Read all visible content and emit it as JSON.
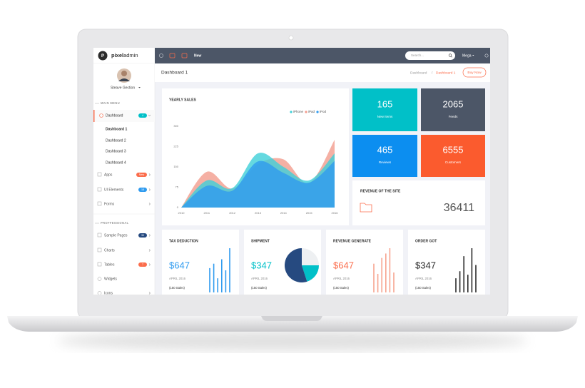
{
  "logo": {
    "mark": "P",
    "bold": "pixel",
    "rest": "admin"
  },
  "user": {
    "name": "Steave Gection"
  },
  "sidebar": {
    "main_heading": "MAIN MENU",
    "dashboard": {
      "label": "Dashboard",
      "badge": "4"
    },
    "sub_items": [
      "Dashboard 1",
      "Dashboard 2",
      "Dashboard 3",
      "Dashboard 4"
    ],
    "apps": {
      "label": "Apps",
      "badge": "New"
    },
    "ui_elements": {
      "label": "UI Elements",
      "badge": "18"
    },
    "forms": {
      "label": "Forms"
    },
    "pro_heading": "PROFFESSIONAL",
    "sample_pages": {
      "label": "Sample Pages",
      "badge": "30"
    },
    "charts": {
      "label": "Charts"
    },
    "tables": {
      "label": "Tables",
      "badge": "7"
    },
    "widgets": {
      "label": "Widgets"
    },
    "icons": {
      "label": "Icons"
    }
  },
  "topbar": {
    "new": "New",
    "search_placeholder": "Search...",
    "mega": "Mega"
  },
  "breadcrumb": {
    "page_title": "Dashboard 1",
    "trail": [
      "Dashboard",
      "Dashboard 1"
    ],
    "separator": "/",
    "button": "Buy Now"
  },
  "tiles": [
    {
      "value": 165,
      "label": "New Items"
    },
    {
      "value": 2065,
      "label": "Feeds"
    },
    {
      "value": 465,
      "label": "Reviews"
    },
    {
      "value": 6555,
      "label": "Customers"
    }
  ],
  "revenue_site": {
    "title": "REVENUE OF THE SITE",
    "value": 36411
  },
  "cards": [
    {
      "value": "$647",
      "period": "APRIL 2016",
      "note": "(150 Sales)",
      "color": "#2f9bef"
    },
    {
      "value": "$347",
      "period": "APRIL 2016",
      "note": "(150 Sales)",
      "color": "#01c0c8"
    },
    {
      "value": "$647",
      "period": "APRIL 2016",
      "note": "(150 Sales)",
      "color": "#fb6d4c"
    },
    {
      "value": "$347",
      "period": "APRIL 2016",
      "note": "(150 Sales)",
      "color": "#2b2b2b"
    }
  ],
  "chart_data": [
    {
      "type": "area",
      "title": "YEARLY SALES",
      "categories": [
        "2010",
        "2011",
        "2012",
        "2013",
        "2014",
        "2015",
        "2016"
      ],
      "series": [
        {
          "name": "iPad",
          "color": "#f39c8d",
          "values": [
            0,
            132,
            70,
            160,
            178,
            90,
            250
          ]
        },
        {
          "name": "iPhone",
          "color": "#3fd0d8",
          "values": [
            0,
            100,
            72,
            200,
            150,
            100,
            200
          ]
        },
        {
          "name": "iPod",
          "color": "#2f9bef",
          "values": [
            0,
            80,
            62,
            170,
            128,
            92,
            172
          ]
        }
      ],
      "legend_order": [
        1,
        0,
        2
      ],
      "ylim": [
        0,
        300
      ],
      "yticks": [
        0,
        75,
        150,
        225,
        300
      ],
      "grid": false
    },
    {
      "type": "bar",
      "title": "TAX DEDUCTION",
      "values": [
        55,
        65,
        32,
        75,
        50,
        100
      ],
      "color": "#2f9bef",
      "ylim": [
        0,
        100
      ]
    },
    {
      "type": "pie",
      "title": "SHIPMENT",
      "values": [
        25,
        20,
        55
      ],
      "colors": [
        "#eef0f2",
        "#01c0c8",
        "#264a80"
      ]
    },
    {
      "type": "bar",
      "title": "REVENUE GENERATE",
      "values": [
        65,
        42,
        78,
        88,
        100,
        45
      ],
      "color": "#f7a48f",
      "ylim": [
        0,
        100
      ]
    },
    {
      "type": "bar",
      "title": "ORDER GOT",
      "values": [
        32,
        48,
        82,
        40,
        100,
        62
      ],
      "color": "#2b2b2b",
      "ylim": [
        0,
        100
      ]
    }
  ]
}
